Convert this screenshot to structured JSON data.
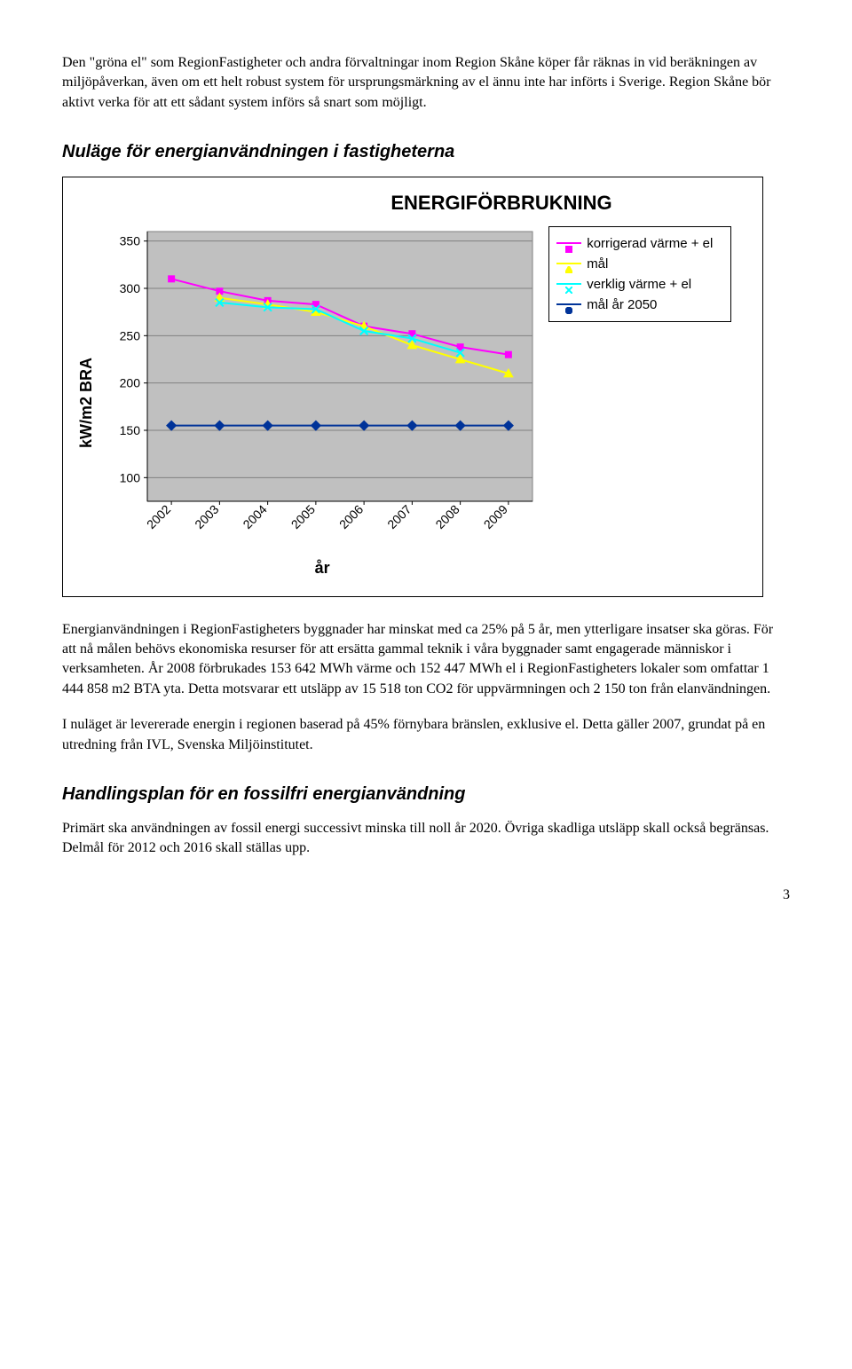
{
  "para1": "Den \"gröna el\" som RegionFastigheter och andra förvaltningar inom Region Skåne köper får räknas in vid beräkningen av miljöpåverkan, även om ett helt robust system för ursprungsmärkning av el ännu inte har införts i Sverige. Region Skåne bör aktivt verka för att ett sådant system införs så snart som möjligt.",
  "heading1": "Nuläge för energianvändningen i fastigheterna",
  "para2": "Energianvändningen i RegionFastigheters byggnader har minskat med ca 25% på 5 år, men ytterligare insatser ska göras. För att nå målen behövs ekonomiska resurser för att ersätta gammal teknik i våra byggnader samt engagerade människor i verksamheten. År 2008 förbrukades 153 642 MWh värme och 152 447 MWh el i RegionFastigheters lokaler som omfattar 1 444 858 m2 BTA yta. Detta motsvarar ett utsläpp av 15 518 ton CO2 för uppvärmningen och 2 150 ton från elanvändningen.",
  "para3": "I nuläget är levererade energin i regionen baserad på 45% förnybara bränslen, exklusive el. Detta gäller 2007, grundat på en utredning från IVL, Svenska Miljöinstitutet.",
  "heading2": "Handlingsplan för en fossilfri energianvändning",
  "para4": "Primärt ska användningen av fossil energi successivt minska till noll år 2020. Övriga skadliga utsläpp skall också begränsas. Delmål för 2012 och 2016 skall ställas upp.",
  "page_number": "3",
  "chart": {
    "type": "line",
    "title": "ENERGIFÖRBRUKNING",
    "xlabel": "år",
    "ylabel": "kW/m2 BRA",
    "categories": [
      "2002",
      "2003",
      "2004",
      "2005",
      "2006",
      "2007",
      "2008",
      "2009"
    ],
    "series": [
      {
        "name": "korrigerad värme + el",
        "color": "#ff00ff",
        "marker": "square",
        "values": [
          310,
          297,
          287,
          283,
          260,
          252,
          238,
          230
        ]
      },
      {
        "name": "mål",
        "color": "#ffff00",
        "marker": "triangle",
        "values": [
          null,
          290,
          283,
          275,
          260,
          240,
          225,
          210
        ]
      },
      {
        "name": "verklig värme + el",
        "color": "#00ffff",
        "marker": "x",
        "values": [
          null,
          285,
          280,
          278,
          255,
          247,
          232,
          null
        ]
      },
      {
        "name": "mål år 2050",
        "color": "#003399",
        "marker": "diamond",
        "values": [
          155,
          155,
          155,
          155,
          155,
          155,
          155,
          155
        ]
      }
    ],
    "ylim": [
      75,
      360
    ],
    "yticks": [
      100,
      150,
      200,
      250,
      300,
      350
    ],
    "plot_bg": "#c0c0c0",
    "grid_color": "#808080",
    "outer_bg": "#ffffff",
    "title_fontsize": 22,
    "label_fontsize": 18,
    "tick_fontsize": 14,
    "line_width": 2,
    "marker_size": 7
  }
}
